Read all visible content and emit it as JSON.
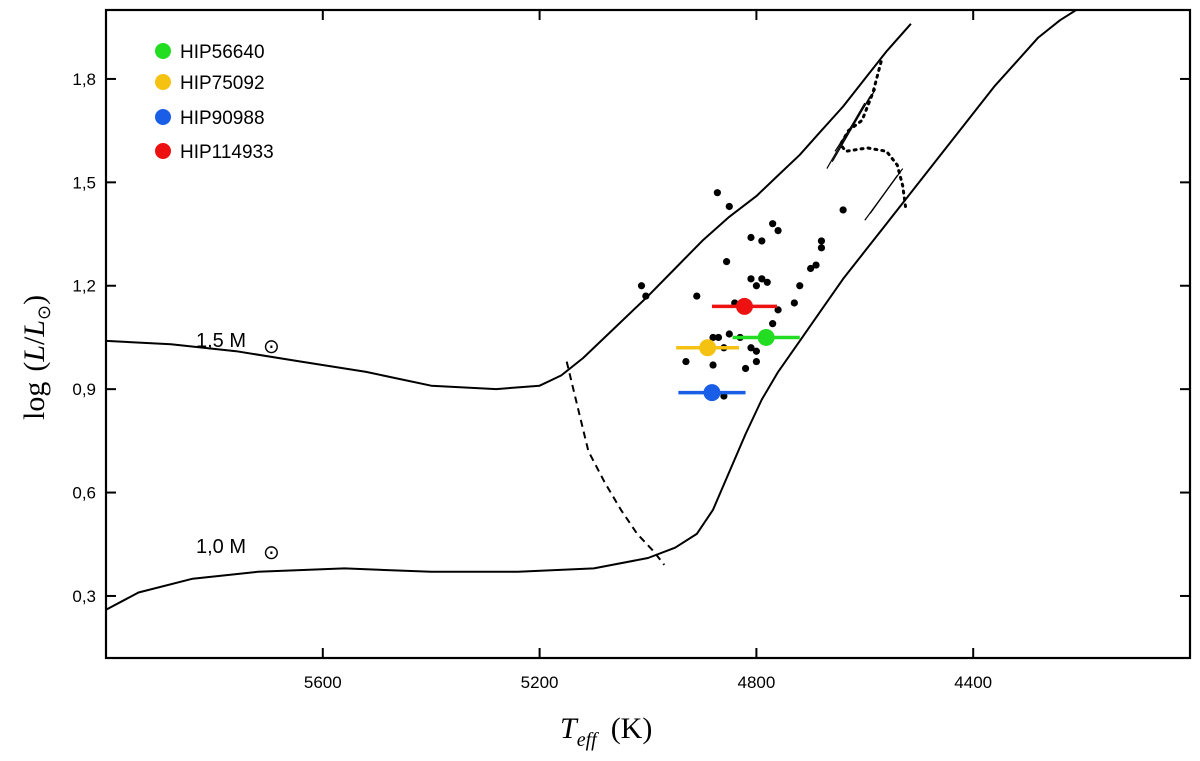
{
  "chart_data": {
    "type": "scatter",
    "title": "",
    "xlabel": "T_eff (K)",
    "ylabel": "log (L/L⊙)",
    "x_label_parts": {
      "var": "T",
      "sub": "eff",
      "unit": "(K)"
    },
    "y_label_parts": {
      "func": "log",
      "open": "(",
      "num": "L",
      "slash": "/",
      "den": "L",
      "sun": "⊙",
      "close": ")"
    },
    "xlim": [
      6000,
      4000
    ],
    "ylim": [
      0.12,
      2.0
    ],
    "x_reversed": true,
    "x_ticks": [
      5600,
      5200,
      4800,
      4400
    ],
    "x_tick_labels": [
      "5600",
      "5200",
      "4800",
      "4400"
    ],
    "y_ticks": [
      0.3,
      0.6,
      0.9,
      1.2,
      1.5,
      1.8
    ],
    "y_tick_labels": [
      "0,3",
      "0,6",
      "0,9",
      "1,2",
      "1,5",
      "1,8"
    ],
    "grid": false,
    "legend_position": "top-left",
    "highlighted_stars": [
      {
        "name": "HIP56640",
        "color": "#22dd22",
        "teff": 4782,
        "teff_err": 62,
        "logL": 1.05,
        "logL_err": 0.0
      },
      {
        "name": "HIP75092",
        "color": "#f5c211",
        "teff": 4890,
        "teff_err": 58,
        "logL": 1.02,
        "logL_err": 0.0
      },
      {
        "name": "HIP90988",
        "color": "#1a5ee8",
        "teff": 4882,
        "teff_err": 62,
        "logL": 0.89,
        "logL_err": 0.0
      },
      {
        "name": "HIP114933",
        "color": "#ee1111",
        "teff": 4822,
        "teff_err": 60,
        "logL": 1.14,
        "logL_err": 0.0
      }
    ],
    "sample_stars": {
      "teff": [
        5012,
        5004,
        4872,
        4850,
        4855,
        4810,
        4770,
        4760,
        4680,
        4640,
        4680,
        4690,
        4700,
        4720,
        4790,
        4810,
        4800,
        4790,
        4780,
        4830,
        4810,
        4800,
        4850,
        4870,
        4860,
        4880,
        4930,
        4910,
        4860,
        4820,
        4800,
        4770,
        4760,
        4730,
        4840,
        4880
      ],
      "logL": [
        1.2,
        1.17,
        1.47,
        1.43,
        1.27,
        1.34,
        1.38,
        1.36,
        1.31,
        1.42,
        1.33,
        1.26,
        1.25,
        1.2,
        1.33,
        1.22,
        1.2,
        1.22,
        1.21,
        1.05,
        1.02,
        1.01,
        1.06,
        1.05,
        1.02,
        0.97,
        0.98,
        1.17,
        0.88,
        0.96,
        0.98,
        1.09,
        1.13,
        1.15,
        1.15,
        1.05
      ]
    },
    "tracks": [
      {
        "name": "1.5 M⊙",
        "label_text": "1,5 M",
        "style": "solid",
        "x": [
          6000,
          5880,
          5760,
          5640,
          5520,
          5400,
          5280,
          5200,
          5160,
          5120,
          5060,
          5000,
          4950,
          4900,
          4850,
          4800,
          4760,
          4720,
          4680,
          4640,
          4600,
          4560,
          4515
        ],
        "y": [
          1.04,
          1.03,
          1.01,
          0.98,
          0.95,
          0.91,
          0.9,
          0.91,
          0.94,
          0.99,
          1.08,
          1.17,
          1.25,
          1.33,
          1.4,
          1.46,
          1.52,
          1.58,
          1.65,
          1.72,
          1.8,
          1.88,
          1.96
        ]
      },
      {
        "name": "1.0 M⊙",
        "label_text": "1,0 M",
        "style": "solid",
        "x": [
          6000,
          5940,
          5840,
          5720,
          5560,
          5400,
          5240,
          5100,
          5000,
          4950,
          4910,
          4880,
          4850,
          4820,
          4790,
          4760,
          4720,
          4680,
          4640,
          4600,
          4560,
          4520,
          4480,
          4440,
          4400,
          4360,
          4320,
          4280,
          4240,
          4200
        ],
        "y": [
          0.26,
          0.31,
          0.35,
          0.37,
          0.38,
          0.37,
          0.37,
          0.38,
          0.41,
          0.44,
          0.48,
          0.55,
          0.66,
          0.77,
          0.87,
          0.95,
          1.04,
          1.13,
          1.22,
          1.3,
          1.38,
          1.46,
          1.54,
          1.62,
          1.7,
          1.78,
          1.85,
          1.92,
          1.97,
          2.01
        ]
      },
      {
        "name": "dashed",
        "style": "dashed",
        "x": [
          5150,
          5130,
          5110,
          5080,
          5050,
          5020,
          4990,
          4970
        ],
        "y": [
          0.98,
          0.85,
          0.72,
          0.63,
          0.55,
          0.48,
          0.43,
          0.39
        ]
      },
      {
        "name": "dotted",
        "style": "dotted",
        "x": [
          4570,
          4585,
          4605,
          4630,
          4645,
          4635,
          4595,
          4560,
          4540,
          4530,
          4525
        ],
        "y": [
          1.85,
          1.76,
          1.68,
          1.65,
          1.61,
          1.59,
          1.6,
          1.59,
          1.55,
          1.49,
          1.43
        ]
      }
    ],
    "overlays": [
      {
        "name": "upper-thin-1",
        "x": [
          4660,
          4590
        ],
        "y": [
          1.56,
          1.75
        ]
      },
      {
        "name": "upper-thin-2",
        "x": [
          4655,
          4580
        ],
        "y": [
          1.59,
          1.77
        ]
      },
      {
        "name": "upper-thin-3",
        "x": [
          4670,
          4600
        ],
        "y": [
          1.54,
          1.73
        ]
      },
      {
        "name": "lower-thin-1",
        "x": [
          4600,
          4530
        ],
        "y": [
          1.39,
          1.54
        ]
      },
      {
        "name": "lower-thin-2",
        "x": [
          4590,
          4540
        ],
        "y": [
          1.41,
          1.52
        ]
      }
    ]
  }
}
